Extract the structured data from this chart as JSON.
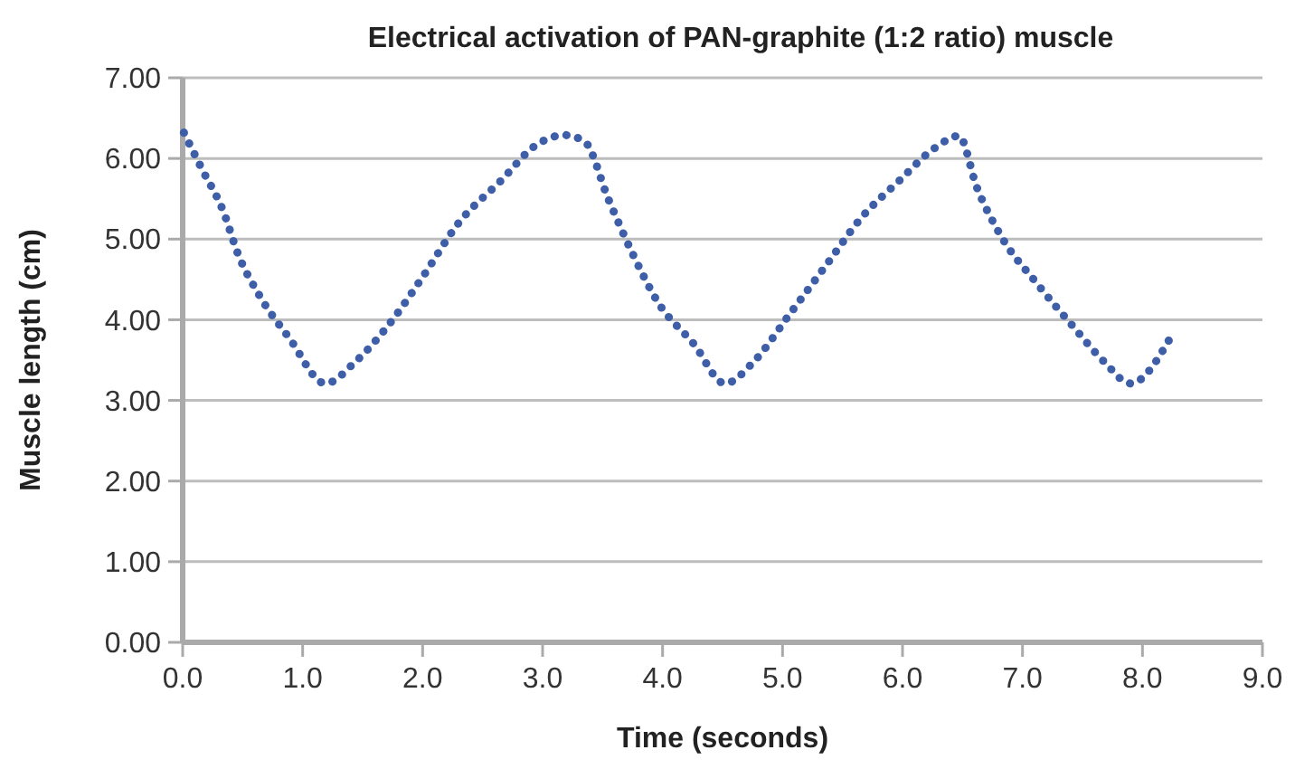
{
  "chart_data": {
    "type": "line",
    "title": "Electrical activation of PAN-graphite (1:2 ratio) muscle",
    "xlabel": "Time (seconds)",
    "ylabel": "Muscle length (cm)",
    "x": [
      0.01,
      0.16,
      0.34,
      0.46,
      0.64,
      0.89,
      1.19,
      1.44,
      1.75,
      2.0,
      2.3,
      2.65,
      2.95,
      3.18,
      3.35,
      3.55,
      3.75,
      3.96,
      4.26,
      4.52,
      4.76,
      5.06,
      5.36,
      5.66,
      5.97,
      6.27,
      6.47,
      6.62,
      6.82,
      7.12,
      7.42,
      7.68,
      7.9,
      8.23
    ],
    "series": [
      {
        "color": "#3e5ea8",
        "values": [
          6.32,
          5.87,
          5.34,
          4.82,
          4.3,
          3.77,
          3.21,
          3.48,
          4.0,
          4.53,
          5.2,
          5.72,
          6.17,
          6.29,
          6.21,
          5.49,
          4.82,
          4.22,
          3.7,
          3.21,
          3.48,
          4.07,
          4.67,
          5.27,
          5.72,
          6.13,
          6.28,
          5.64,
          5.04,
          4.45,
          3.92,
          3.48,
          3.21,
          3.77
        ]
      }
    ],
    "xlim": [
      0,
      9
    ],
    "xticks": [
      {
        "value": 0,
        "label": "0.0"
      },
      {
        "value": 1,
        "label": "1.0"
      },
      {
        "value": 2,
        "label": "2.0"
      },
      {
        "value": 3,
        "label": "3.0"
      },
      {
        "value": 4,
        "label": "4.0"
      },
      {
        "value": 5,
        "label": "5.0"
      },
      {
        "value": 6,
        "label": "6.0"
      },
      {
        "value": 7,
        "label": "7.0"
      },
      {
        "value": 8,
        "label": "8.0"
      },
      {
        "value": 9,
        "label": "9.0"
      }
    ],
    "ylim": [
      0,
      7
    ],
    "yticks": [
      {
        "value": 0,
        "label": "0.00"
      },
      {
        "value": 1,
        "label": "1.00"
      },
      {
        "value": 2,
        "label": "2.00"
      },
      {
        "value": 3,
        "label": "3.00"
      },
      {
        "value": 4,
        "label": "4.00"
      },
      {
        "value": 5,
        "label": "5.00"
      },
      {
        "value": 6,
        "label": "6.00"
      },
      {
        "value": 7,
        "label": "7.00"
      }
    ],
    "grid": "y",
    "line_style": "dotted",
    "marker": "none"
  }
}
